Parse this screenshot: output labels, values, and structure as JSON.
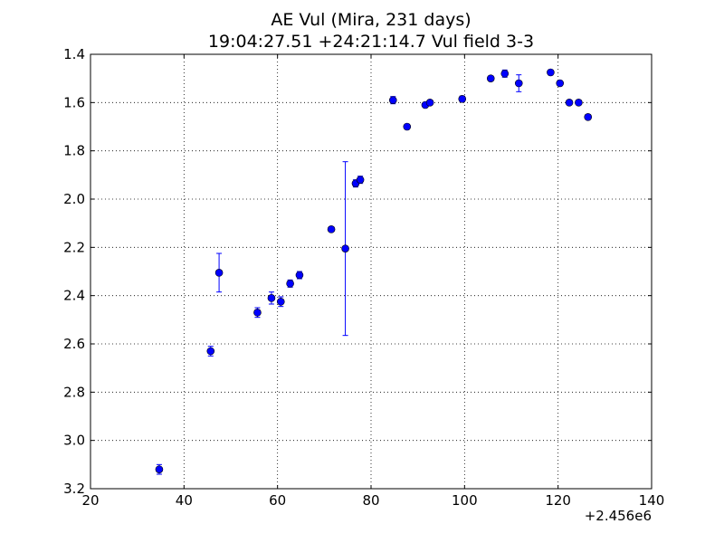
{
  "chart_data": {
    "type": "scatter",
    "title": "AE Vul (Mira, 231 days)",
    "subtitle": "19:04:27.51 +24:21:14.7 Vul field 3-3",
    "xlabel": "",
    "ylabel": "",
    "x_offset_label": "+2.456e6",
    "xlim": [
      20,
      140
    ],
    "ylim": [
      1.4,
      3.2
    ],
    "y_inverted": true,
    "xticks": [
      20,
      40,
      60,
      80,
      100,
      120,
      140
    ],
    "yticks": [
      1.4,
      1.6,
      1.8,
      2.0,
      2.2,
      2.4,
      2.6,
      2.8,
      3.0,
      3.2
    ],
    "grid": true,
    "marker_color": "#0000ff",
    "points": [
      {
        "x": 34.7,
        "y": 3.12,
        "err": 0.02
      },
      {
        "x": 45.7,
        "y": 2.63,
        "err": 0.02
      },
      {
        "x": 47.5,
        "y": 2.305,
        "err": 0.08
      },
      {
        "x": 55.7,
        "y": 2.47,
        "err": 0.02
      },
      {
        "x": 58.7,
        "y": 2.41,
        "err": 0.025
      },
      {
        "x": 60.7,
        "y": 2.425,
        "err": 0.02
      },
      {
        "x": 62.7,
        "y": 2.35,
        "err": 0.015
      },
      {
        "x": 64.7,
        "y": 2.315,
        "err": 0.015
      },
      {
        "x": 71.5,
        "y": 2.125,
        "err": 0.01
      },
      {
        "x": 74.5,
        "y": 2.205,
        "err": 0.36
      },
      {
        "x": 76.7,
        "y": 1.935,
        "err": 0.015
      },
      {
        "x": 77.7,
        "y": 1.92,
        "err": 0.015
      },
      {
        "x": 84.7,
        "y": 1.59,
        "err": 0.015
      },
      {
        "x": 87.7,
        "y": 1.7,
        "err": 0.01
      },
      {
        "x": 91.6,
        "y": 1.61,
        "err": 0.01
      },
      {
        "x": 92.6,
        "y": 1.6,
        "err": 0.01
      },
      {
        "x": 99.5,
        "y": 1.585,
        "err": 0.012
      },
      {
        "x": 105.6,
        "y": 1.5,
        "err": 0.01
      },
      {
        "x": 108.6,
        "y": 1.48,
        "err": 0.015
      },
      {
        "x": 111.6,
        "y": 1.52,
        "err": 0.035
      },
      {
        "x": 118.4,
        "y": 1.475,
        "err": 0.01
      },
      {
        "x": 120.4,
        "y": 1.52,
        "err": 0.01
      },
      {
        "x": 122.4,
        "y": 1.6,
        "err": 0.01
      },
      {
        "x": 124.4,
        "y": 1.6,
        "err": 0.01
      },
      {
        "x": 126.4,
        "y": 1.66,
        "err": 0.01
      }
    ]
  }
}
